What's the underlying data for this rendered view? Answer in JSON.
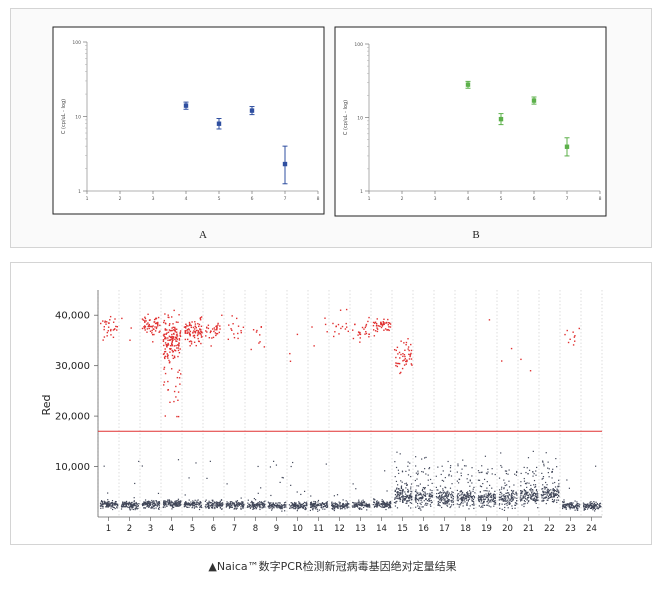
{
  "caption": "▲Naica™数字PCR检测新冠病毒基因绝对定量结果",
  "colors": {
    "blue": "#2f4fa0",
    "green": "#5cb04a",
    "red": "#e03030",
    "dark": "#404658",
    "threshold": "#e03030"
  },
  "chart_data": [
    {
      "type": "scatter",
      "label": "A",
      "ylabel": "C (cp/uL - log)",
      "yscale": "log",
      "ylim": [
        1,
        100
      ],
      "yticks": [
        "100",
        "10",
        "1"
      ],
      "xlim": [
        1,
        8
      ],
      "xticks": [
        "1",
        "2",
        "3",
        "4",
        "5",
        "6",
        "7",
        "8"
      ],
      "color": "#2f4fa0",
      "points": [
        {
          "x": 4,
          "y": 14,
          "low": 12.5,
          "high": 15.6
        },
        {
          "x": 5,
          "y": 8.0,
          "low": 6.8,
          "high": 9.4
        },
        {
          "x": 6,
          "y": 12.0,
          "low": 10.6,
          "high": 13.6
        },
        {
          "x": 7,
          "y": 2.3,
          "low": 1.25,
          "high": 4.0
        }
      ]
    },
    {
      "type": "scatter",
      "label": "B",
      "ylabel": "C (cp/uL - log)",
      "yscale": "log",
      "ylim": [
        1,
        100
      ],
      "yticks": [
        "100",
        "10",
        "1"
      ],
      "xlim": [
        1,
        8
      ],
      "xticks": [
        "1",
        "2",
        "3",
        "4",
        "5",
        "6",
        "7",
        "8"
      ],
      "color": "#5cb04a",
      "points": [
        {
          "x": 4,
          "y": 28,
          "low": 25,
          "high": 31
        },
        {
          "x": 5,
          "y": 9.5,
          "low": 8.0,
          "high": 11.3
        },
        {
          "x": 6,
          "y": 17,
          "low": 15.2,
          "high": 19.0
        },
        {
          "x": 7,
          "y": 4.0,
          "low": 3.0,
          "high": 5.3
        }
      ]
    },
    {
      "type": "scatter",
      "ylabel": "Red",
      "ylim": [
        0,
        45000
      ],
      "yticks": [
        10000,
        20000,
        30000,
        40000
      ],
      "ytick_labels": [
        "10,000",
        "20,000",
        "30,000",
        "40,000"
      ],
      "xticks": [
        "1",
        "2",
        "3",
        "4",
        "5",
        "6",
        "7",
        "8",
        "9",
        "10",
        "11",
        "12",
        "13",
        "14",
        "15",
        "16",
        "17",
        "18",
        "19",
        "20",
        "21",
        "22",
        "23",
        "24"
      ],
      "threshold": 17000,
      "wells": [
        {
          "well": 1,
          "pos": 30,
          "neg": 110,
          "pos_center": 37500,
          "pos_spread": 2000,
          "neg_level": 2600
        },
        {
          "well": 2,
          "pos": 3,
          "neg": 110,
          "pos_center": 37000,
          "pos_spread": 5000,
          "neg_level": 2500
        },
        {
          "well": 3,
          "pos": 60,
          "neg": 110,
          "pos_center": 38000,
          "pos_spread": 2200,
          "neg_level": 2600
        },
        {
          "well": 4,
          "pos": 170,
          "neg": 120,
          "pos_center": 35000,
          "pos_spread": 5500,
          "neg_level": 2700
        },
        {
          "well": 5,
          "pos": 90,
          "neg": 110,
          "pos_center": 37000,
          "pos_spread": 2600,
          "neg_level": 2600
        },
        {
          "well": 6,
          "pos": 35,
          "neg": 110,
          "pos_center": 37500,
          "pos_spread": 2200,
          "neg_level": 2600
        },
        {
          "well": 7,
          "pos": 15,
          "neg": 110,
          "pos_center": 37000,
          "pos_spread": 2500,
          "neg_level": 2500
        },
        {
          "well": 8,
          "pos": 10,
          "neg": 110,
          "pos_center": 37000,
          "pos_spread": 3000,
          "neg_level": 2500
        },
        {
          "well": 9,
          "pos": 0,
          "neg": 110,
          "pos_center": 0,
          "pos_spread": 0,
          "neg_level": 2300
        },
        {
          "well": 10,
          "pos": 3,
          "neg": 110,
          "pos_center": 33000,
          "pos_spread": 4000,
          "neg_level": 2300
        },
        {
          "well": 11,
          "pos": 5,
          "neg": 110,
          "pos_center": 37000,
          "pos_spread": 3000,
          "neg_level": 2400
        },
        {
          "well": 12,
          "pos": 15,
          "neg": 110,
          "pos_center": 37000,
          "pos_spread": 3000,
          "neg_level": 2400
        },
        {
          "well": 13,
          "pos": 25,
          "neg": 110,
          "pos_center": 37500,
          "pos_spread": 2500,
          "neg_level": 2500
        },
        {
          "well": 14,
          "pos": 50,
          "neg": 110,
          "pos_center": 38000,
          "pos_spread": 1600,
          "neg_level": 2600
        },
        {
          "well": 15,
          "pos": 50,
          "neg": 160,
          "pos_center": 32000,
          "pos_spread": 3500,
          "neg_level": 4200
        },
        {
          "well": 16,
          "pos": 0,
          "neg": 140,
          "pos_center": 0,
          "pos_spread": 0,
          "neg_level": 3800
        },
        {
          "well": 17,
          "pos": 0,
          "neg": 140,
          "pos_center": 0,
          "pos_spread": 0,
          "neg_level": 3800
        },
        {
          "well": 18,
          "pos": 0,
          "neg": 140,
          "pos_center": 0,
          "pos_spread": 0,
          "neg_level": 3900
        },
        {
          "well": 19,
          "pos": 1,
          "neg": 140,
          "pos_center": 39500,
          "pos_spread": 500,
          "neg_level": 3800
        },
        {
          "well": 20,
          "pos": 2,
          "neg": 140,
          "pos_center": 30000,
          "pos_spread": 3000,
          "neg_level": 3900
        },
        {
          "well": 21,
          "pos": 2,
          "neg": 150,
          "pos_center": 33000,
          "pos_spread": 3000,
          "neg_level": 4200
        },
        {
          "well": 22,
          "pos": 0,
          "neg": 150,
          "pos_center": 0,
          "pos_spread": 0,
          "neg_level": 4500
        },
        {
          "well": 23,
          "pos": 10,
          "neg": 100,
          "pos_center": 36000,
          "pos_spread": 2000,
          "neg_level": 2300
        },
        {
          "well": 24,
          "pos": 0,
          "neg": 100,
          "pos_center": 0,
          "pos_spread": 0,
          "neg_level": 2300
        }
      ]
    }
  ]
}
